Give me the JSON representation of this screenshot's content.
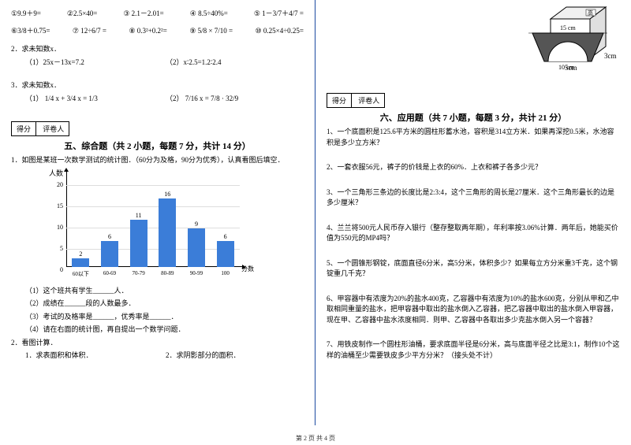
{
  "left": {
    "eq_row1": [
      "①9.9＋9=",
      "②2.5×40=",
      "③ 2.1－2.01=",
      "④ 8.5÷40%=",
      "⑤ 1－3/7＋4/7 ="
    ],
    "eq_row2": [
      "⑥3/8＋0.75=",
      "⑦ 12÷6/7 =",
      "⑧ 0.3²+0.2²=",
      "⑨ 5/8 × 7/10 =",
      "⑩ 0.25×4÷0.25="
    ],
    "q2": "2．求未知数x．",
    "q2a": "（1）25x－13x=7.2",
    "q2b": "（2）x∶2.5=1.2∶2.4",
    "q3": "3．求未知数x．",
    "q3a": "（1） 1/4 x + 3/4 x = 1/3",
    "q3b": "（2） 7/16 x = 7/8 · 32/9",
    "score_a": "得分",
    "score_b": "评卷人",
    "sec5": "五、综合题（共 2 小题，每题 7 分，共计 14 分）",
    "p1": "1．如图是某班一次数学测试的统计图．（60分为及格，90分为优秀），认真看图后填空．",
    "chart": {
      "y_label": "人数",
      "x_label": "分数",
      "y_ticks": [
        0,
        5,
        10,
        15,
        20
      ],
      "categories": [
        "60以下",
        "60-69",
        "70-79",
        "80-89",
        "90-99",
        "100"
      ],
      "values": [
        2,
        6,
        11,
        16,
        9,
        6
      ],
      "bar_color": "#3b7dd8",
      "y_max": 20
    },
    "p1_sub": [
      "（1）这个班共有学生______人．",
      "（2）成绩在______段的人数最多．",
      "（3）考试的及格率是______，优秀率是______．",
      "（4）请在右面的统计图，再自提出一个数学问题．"
    ],
    "p2": "2．看图计算．",
    "p2a": "1．求表面积和体积．",
    "p2b": "2．求阴影部分的面积．"
  },
  "right": {
    "cube": {
      "label_w": "5cm",
      "label_d": "3cm",
      "label_h": "高"
    },
    "trap": {
      "top": "15 cm",
      "bottom": "10 cm"
    },
    "score_a": "得分",
    "score_b": "评卷人",
    "sec6": "六、应用题（共 7 小题，每题 3 分，共计 21 分）",
    "q1": "1、一个底面积是125.6平方米的圆柱形蓄水池，容积是314立方米．如果再深挖0.5米，水池容积是多少立方米？",
    "q2": "2、一套衣服56元，裤子的价钱是上衣的60%．上衣和裤子各多少元？",
    "q3": "3、一个三角形三条边的长度比是2:3:4，这个三角形的周长是27厘米．这个三角形最长的边是多少厘米？",
    "q4": "4、兰兰将500元人民币存入银行（整存整取两年期），年利率按3.06%计算．两年后，她能买价值为550元的MP4吗？",
    "q5": "5、一个圆锥形钢锭，底面直径6分米，高5分米，体积多少？如果每立方分米重3千克，这个钢锭重几千克？",
    "q6": "6、甲容器中有浓度为20%的盐水400克，乙容器中有浓度为10%的盐水600克，分别从甲和乙中取相同重量的盐水，把甲容器中取出的盐水倒入乙容器，把乙容器中取出的盐水倒入甲容器，现在甲、乙容器中盐水浓度相同．则甲、乙容器中各取出多少克盐水倒入另一个容器？",
    "q7": "7、用铁皮制作一个圆柱形油桶，要求底面半径是6分米，高与底面半径之比是3:1，制作10个这样的油桶至少需要铁皮多少平方分米？（接头处不计）"
  },
  "footer": "第 2 页 共 4 页"
}
